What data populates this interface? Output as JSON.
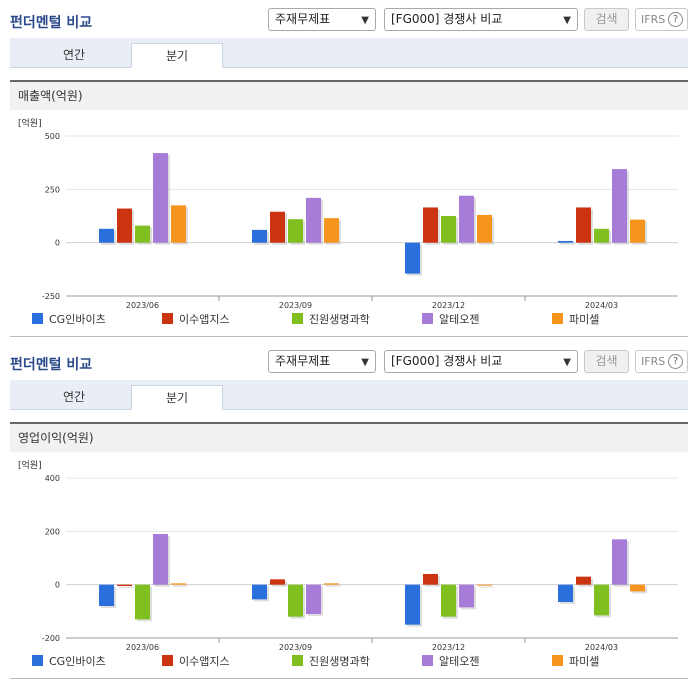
{
  "colors": {
    "CG인바이츠": "#2a6fdc",
    "이수앱지스": "#cc3311",
    "진원생명과학": "#7fbf1f",
    "알테오젠": "#a77bd8",
    "파미셀": "#f7941d"
  },
  "panels": [
    {
      "title": "펀더멘털 비교",
      "select1": "주재무제표",
      "select2": "[FG000] 경쟁사 비교",
      "search_label": "검색",
      "ifrs_label": "IFRS",
      "tabs": [
        "연간",
        "분기"
      ],
      "active_tab": "분기",
      "section_title": "매출액(억원)",
      "unit_label": "[억원]",
      "legend": [
        "CG인바이츠",
        "이수앱지스",
        "진원생명과학",
        "알테오젠",
        "파미셀"
      ]
    },
    {
      "title": "펀더멘털 비교",
      "select1": "주재무제표",
      "select2": "[FG000] 경쟁사 비교",
      "search_label": "검색",
      "ifrs_label": "IFRS",
      "tabs": [
        "연간",
        "분기"
      ],
      "active_tab": "분기",
      "section_title": "영업이익(억원)",
      "unit_label": "[억원]",
      "legend": [
        "CG인바이츠",
        "이수앱지스",
        "진원생명과학",
        "알테오젠",
        "파미셀"
      ]
    }
  ],
  "chart_data": [
    {
      "type": "bar",
      "title": "매출액(억원)",
      "ylabel": "[억원]",
      "categories": [
        "2023/06",
        "2023/09",
        "2023/12",
        "2024/03"
      ],
      "yticks": [
        500,
        250,
        0,
        -250
      ],
      "ylim": [
        -250,
        500
      ],
      "grid": true,
      "legend_position": "bottom",
      "series": [
        {
          "name": "CG인바이츠",
          "values": [
            65,
            60,
            -145,
            8
          ]
        },
        {
          "name": "이수앱지스",
          "values": [
            160,
            145,
            165,
            165
          ]
        },
        {
          "name": "진원생명과학",
          "values": [
            80,
            110,
            125,
            65
          ]
        },
        {
          "name": "알테오젠",
          "values": [
            420,
            210,
            220,
            345
          ]
        },
        {
          "name": "파미셀",
          "values": [
            175,
            115,
            130,
            108
          ]
        }
      ]
    },
    {
      "type": "bar",
      "title": "영업이익(억원)",
      "ylabel": "[억원]",
      "categories": [
        "2023/06",
        "2023/09",
        "2023/12",
        "2024/03"
      ],
      "yticks": [
        400,
        200,
        0,
        -200
      ],
      "ylim": [
        -200,
        400
      ],
      "grid": true,
      "legend_position": "bottom",
      "series": [
        {
          "name": "CG인바이츠",
          "values": [
            -80,
            -55,
            -150,
            -65
          ]
        },
        {
          "name": "이수앱지스",
          "values": [
            -5,
            20,
            40,
            30
          ]
        },
        {
          "name": "진원생명과학",
          "values": [
            -130,
            -120,
            -120,
            -115
          ]
        },
        {
          "name": "알테오젠",
          "values": [
            190,
            -110,
            -85,
            170
          ]
        },
        {
          "name": "파미셀",
          "values": [
            5,
            5,
            -3,
            -25
          ]
        }
      ]
    }
  ]
}
